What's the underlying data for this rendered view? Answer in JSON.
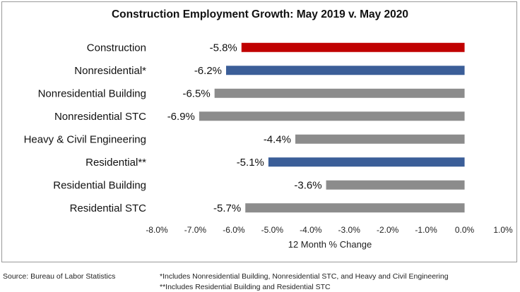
{
  "chart_data": {
    "type": "bar",
    "orientation": "horizontal",
    "title": "Construction Employment Growth: May 2019 v. May 2020",
    "categories": [
      "Construction",
      "Nonresidential*",
      "Nonresidential Building",
      "Nonresidential STC",
      "Heavy & Civil Engineering",
      "Residential**",
      "Residential Building",
      "Residential STC"
    ],
    "values": [
      -5.8,
      -6.2,
      -6.5,
      -6.9,
      -4.4,
      -5.1,
      -3.6,
      -5.7
    ],
    "data_labels": [
      "-5.8%",
      "-6.2%",
      "-6.5%",
      "-6.9%",
      "-4.4%",
      "-5.1%",
      "-3.6%",
      "-5.7%"
    ],
    "colors": [
      "#c00000",
      "#3b5e98",
      "#8c8c8c",
      "#8c8c8c",
      "#8c8c8c",
      "#3b5e98",
      "#8c8c8c",
      "#8c8c8c"
    ],
    "xlabel": "12 Month % Change",
    "ylabel": "",
    "xlim": [
      -8,
      1
    ],
    "xticks": [
      -8,
      -7,
      -6,
      -5,
      -4,
      -3,
      -2,
      -1,
      0,
      1
    ],
    "xtick_labels": [
      "-8.0%",
      "-7.0%",
      "-6.0%",
      "-5.0%",
      "-4.0%",
      "-3.0%",
      "-2.0%",
      "-1.0%",
      "0.0%",
      "1.0%"
    ],
    "grid": false,
    "legend": "none"
  },
  "footer": {
    "source": "Source:  Bureau of Labor Statistics",
    "note1": "*Includes Nonresidential Building, Nonresidential STC, and Heavy and Civil Engineering",
    "note2": "**Includes Residential Building and Residential STC"
  }
}
